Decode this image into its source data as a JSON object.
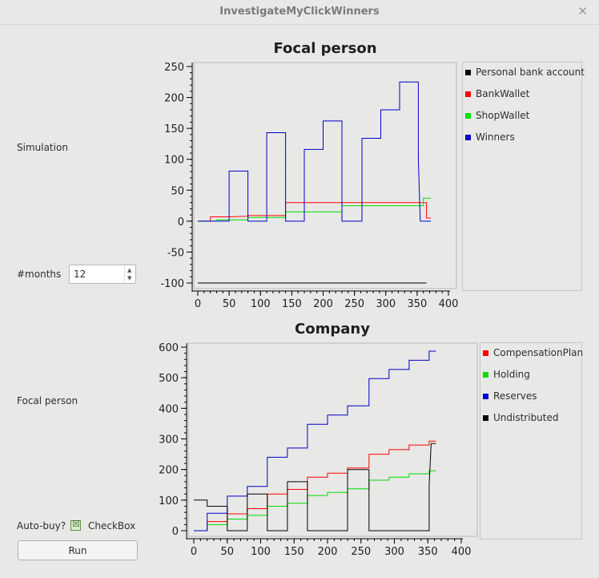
{
  "window": {
    "title": "InvestigateMyClickWinners"
  },
  "form": {
    "simulation_label": "Simulation",
    "months_label": "#months",
    "months_value": "12",
    "focal_label": "Focal person",
    "autobuy_label": "Auto-buy?",
    "checkbox_label": "CheckBox",
    "checkbox_checked": true,
    "run_label": "Run"
  },
  "chart_data": [
    {
      "type": "line",
      "title": "Focal person",
      "xlabel": "",
      "ylabel": "",
      "xlim": [
        0,
        400
      ],
      "ylim": [
        -100,
        250
      ],
      "xticks": [
        0,
        50,
        100,
        150,
        200,
        250,
        300,
        350,
        400
      ],
      "yticks": [
        250,
        200,
        150,
        100,
        50,
        0,
        -50,
        -100
      ],
      "legend_position": "right",
      "series": [
        {
          "name": "Personal bank account",
          "color": "#000000",
          "points": [
            [
              0,
              -100
            ],
            [
              365,
              -100
            ]
          ]
        },
        {
          "name": "BankWallet",
          "color": "#ff0000",
          "points": [
            [
              0,
              0
            ],
            [
              20,
              0
            ],
            [
              20,
              7
            ],
            [
              50,
              7
            ],
            [
              80,
              8
            ],
            [
              80,
              9
            ],
            [
              140,
              9
            ],
            [
              140,
              30
            ],
            [
              365,
              30
            ],
            [
              365,
              5
            ],
            [
              372,
              5
            ]
          ]
        },
        {
          "name": "ShopWallet",
          "color": "#00dd00",
          "points": [
            [
              0,
              0
            ],
            [
              30,
              0
            ],
            [
              30,
              2
            ],
            [
              80,
              2
            ],
            [
              80,
              6
            ],
            [
              140,
              6
            ],
            [
              140,
              15
            ],
            [
              230,
              15
            ],
            [
              230,
              25
            ],
            [
              360,
              25
            ],
            [
              360,
              37
            ],
            [
              372,
              37
            ]
          ]
        },
        {
          "name": "Winners",
          "color": "#0000cc",
          "points": [
            [
              0,
              0
            ],
            [
              50,
              0
            ],
            [
              50,
              81
            ],
            [
              80,
              81
            ],
            [
              80,
              0
            ],
            [
              110,
              0
            ],
            [
              110,
              143
            ],
            [
              140,
              143
            ],
            [
              140,
              0
            ],
            [
              170,
              0
            ],
            [
              170,
              116
            ],
            [
              200,
              116
            ],
            [
              200,
              162
            ],
            [
              230,
              162
            ],
            [
              230,
              0
            ],
            [
              262,
              0
            ],
            [
              262,
              134
            ],
            [
              292,
              134
            ],
            [
              292,
              180
            ],
            [
              322,
              180
            ],
            [
              322,
              225
            ],
            [
              352,
              225
            ],
            [
              352,
              100
            ],
            [
              355,
              0
            ],
            [
              372,
              0
            ]
          ]
        }
      ]
    },
    {
      "type": "line",
      "title": "Company",
      "xlabel": "",
      "ylabel": "",
      "xlim": [
        0,
        400
      ],
      "ylim": [
        0,
        600
      ],
      "xticks": [
        0,
        50,
        100,
        150,
        200,
        250,
        300,
        350,
        400
      ],
      "yticks": [
        600,
        500,
        400,
        300,
        200,
        100,
        0
      ],
      "legend_position": "right",
      "series": [
        {
          "name": "CompensationPlan",
          "color": "#ff0000",
          "points": [
            [
              0,
              0
            ],
            [
              20,
              0
            ],
            [
              20,
              30
            ],
            [
              50,
              30
            ],
            [
              50,
              55
            ],
            [
              80,
              55
            ],
            [
              80,
              72
            ],
            [
              110,
              72
            ],
            [
              110,
              120
            ],
            [
              140,
              120
            ],
            [
              140,
              135
            ],
            [
              170,
              135
            ],
            [
              170,
              175
            ],
            [
              200,
              175
            ],
            [
              200,
              188
            ],
            [
              230,
              188
            ],
            [
              230,
              205
            ],
            [
              262,
              205
            ],
            [
              262,
              250
            ],
            [
              292,
              250
            ],
            [
              292,
              265
            ],
            [
              322,
              265
            ],
            [
              322,
              280
            ],
            [
              352,
              280
            ],
            [
              352,
              293
            ],
            [
              362,
              293
            ]
          ]
        },
        {
          "name": "Holding",
          "color": "#00dd00",
          "points": [
            [
              0,
              0
            ],
            [
              20,
              0
            ],
            [
              20,
              20
            ],
            [
              50,
              20
            ],
            [
              50,
              38
            ],
            [
              80,
              38
            ],
            [
              80,
              50
            ],
            [
              110,
              50
            ],
            [
              110,
              80
            ],
            [
              140,
              80
            ],
            [
              140,
              90
            ],
            [
              170,
              90
            ],
            [
              170,
              115
            ],
            [
              200,
              115
            ],
            [
              200,
              125
            ],
            [
              230,
              125
            ],
            [
              230,
              137
            ],
            [
              262,
              137
            ],
            [
              262,
              165
            ],
            [
              292,
              165
            ],
            [
              292,
              175
            ],
            [
              322,
              175
            ],
            [
              322,
              186
            ],
            [
              352,
              186
            ],
            [
              352,
              196
            ],
            [
              362,
              196
            ]
          ]
        },
        {
          "name": "Reserves",
          "color": "#0000cc",
          "points": [
            [
              0,
              0
            ],
            [
              20,
              0
            ],
            [
              20,
              57
            ],
            [
              50,
              57
            ],
            [
              50,
              113
            ],
            [
              80,
              113
            ],
            [
              80,
              145
            ],
            [
              110,
              145
            ],
            [
              110,
              240
            ],
            [
              140,
              240
            ],
            [
              140,
              270
            ],
            [
              170,
              270
            ],
            [
              170,
              348
            ],
            [
              200,
              348
            ],
            [
              200,
              378
            ],
            [
              230,
              378
            ],
            [
              230,
              408
            ],
            [
              262,
              408
            ],
            [
              262,
              497
            ],
            [
              292,
              497
            ],
            [
              292,
              527
            ],
            [
              322,
              527
            ],
            [
              322,
              557
            ],
            [
              352,
              557
            ],
            [
              352,
              587
            ],
            [
              362,
              587
            ]
          ]
        },
        {
          "name": "Undistributed",
          "color": "#000000",
          "points": [
            [
              0,
              100
            ],
            [
              20,
              100
            ],
            [
              20,
              80
            ],
            [
              50,
              80
            ],
            [
              50,
              0
            ],
            [
              80,
              0
            ],
            [
              80,
              120
            ],
            [
              110,
              120
            ],
            [
              110,
              0
            ],
            [
              140,
              0
            ],
            [
              140,
              160
            ],
            [
              170,
              160
            ],
            [
              170,
              0
            ],
            [
              230,
              0
            ],
            [
              230,
              200
            ],
            [
              262,
              200
            ],
            [
              262,
              0
            ],
            [
              352,
              0
            ],
            [
              352,
              150
            ],
            [
              355,
              285
            ],
            [
              362,
              285
            ]
          ]
        }
      ]
    }
  ]
}
